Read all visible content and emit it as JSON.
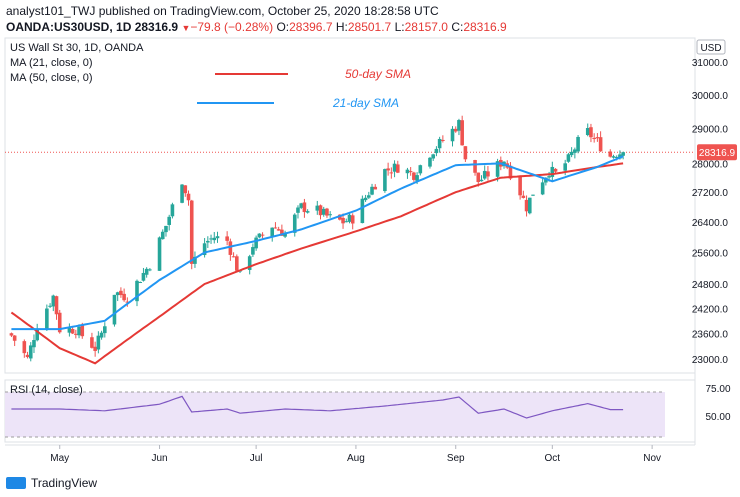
{
  "header": {
    "line1": "analyst101_TWJ published on TradingView.com, October 25, 2020 18:28:58 UTC",
    "symbol": "OANDA:US30USD, 1D",
    "last": "28316.9",
    "change": "−79.8 (−0.28%)",
    "o_label": "O:",
    "o_value": "28396.7",
    "h_label": "H:",
    "h_value": "28501.7",
    "l_label": "L:",
    "l_value": "28157.0",
    "c_label": "C:",
    "c_value": "28316.9"
  },
  "legend": {
    "title": "US Wall St 30, 1D, OANDA",
    "ma21": "MA (21, close, 0)",
    "ma50": "MA (50, close, 0)",
    "sma50_annot": "50-day SMA",
    "sma21_annot": "21-day SMA"
  },
  "price_axis": {
    "currency": "USD",
    "last_price_tag": "28316.9"
  },
  "rsi": {
    "label": "RSI (14, close)",
    "ticks": [
      "75.00",
      "50.00"
    ]
  },
  "footer": {
    "brand": "TradingView"
  },
  "colors": {
    "up": "#26a69a",
    "down": "#ef5350",
    "sma50": "#e53935",
    "sma21": "#2196f3",
    "rsi": "#7e57c2",
    "rsi_band": "#ece3f7"
  },
  "chart_data": {
    "type": "candlestick",
    "price_scale": "log",
    "ylim": [
      22700,
      31700
    ],
    "yticks": [
      23000,
      23600,
      24200,
      24800,
      25600,
      26400,
      27200,
      28000,
      29000,
      30000,
      31000
    ],
    "ytick_labels": [
      "23000.0",
      "23600.0",
      "24200.0",
      "24800.0",
      "25600.0",
      "26400.0",
      "27200.0",
      "28000.0",
      "29000.0",
      "30000.0",
      "31000.0"
    ],
    "month_labels": [
      "May",
      "Jun",
      "Jul",
      "Aug",
      "Sep",
      "Oct",
      "Nov"
    ],
    "last_price": 28316.9,
    "rsi_range": [
      0,
      100
    ],
    "rsi_levels": [
      70,
      30
    ],
    "ohlc_anchors_close": [
      [
        "2020-04-16",
        23550
      ],
      [
        "2020-04-21",
        23000
      ],
      [
        "2020-04-24",
        23800
      ],
      [
        "2020-04-29",
        24500
      ],
      [
        "2020-05-01",
        23700
      ],
      [
        "2020-05-06",
        23700
      ],
      [
        "2020-05-12",
        23250
      ],
      [
        "2020-05-14",
        23600
      ],
      [
        "2020-05-18",
        24600
      ],
      [
        "2020-05-22",
        24480
      ],
      [
        "2020-05-26",
        24950
      ],
      [
        "2020-05-29",
        25300
      ],
      [
        "2020-06-03",
        26300
      ],
      [
        "2020-06-08",
        27550
      ],
      [
        "2020-06-10",
        27000
      ],
      [
        "2020-06-11",
        25300
      ],
      [
        "2020-06-15",
        25850
      ],
      [
        "2020-06-18",
        26000
      ],
      [
        "2020-06-22",
        25900
      ],
      [
        "2020-06-26",
        25000
      ],
      [
        "2020-06-30",
        25800
      ],
      [
        "2020-07-06",
        26300
      ],
      [
        "2020-07-10",
        26100
      ],
      [
        "2020-07-15",
        26800
      ],
      [
        "2020-07-20",
        26700
      ],
      [
        "2020-07-24",
        26500
      ],
      [
        "2020-07-28",
        26400
      ],
      [
        "2020-07-31",
        26500
      ],
      [
        "2020-08-05",
        27200
      ],
      [
        "2020-08-10",
        27800
      ],
      [
        "2020-08-14",
        27900
      ],
      [
        "2020-08-19",
        27700
      ],
      [
        "2020-08-24",
        28300
      ],
      [
        "2020-08-28",
        28650
      ],
      [
        "2020-09-02",
        29150
      ],
      [
        "2020-09-04",
        28150
      ],
      [
        "2020-09-08",
        27500
      ],
      [
        "2020-09-11",
        27700
      ],
      [
        "2020-09-16",
        28100
      ],
      [
        "2020-09-21",
        27200
      ],
      [
        "2020-09-23",
        26800
      ],
      [
        "2020-09-25",
        27200
      ],
      [
        "2020-09-30",
        27800
      ],
      [
        "2020-10-02",
        27700
      ],
      [
        "2020-10-06",
        28100
      ],
      [
        "2020-10-09",
        28600
      ],
      [
        "2020-10-12",
        28900
      ],
      [
        "2020-10-15",
        28600
      ],
      [
        "2020-10-19",
        28200
      ],
      [
        "2020-10-21",
        28300
      ],
      [
        "2020-10-23",
        28316.9
      ]
    ],
    "sma21_anchors": [
      [
        "2020-04-16",
        23700
      ],
      [
        "2020-05-01",
        23700
      ],
      [
        "2020-05-15",
        23900
      ],
      [
        "2020-06-01",
        24900
      ],
      [
        "2020-06-15",
        25600
      ],
      [
        "2020-07-01",
        25900
      ],
      [
        "2020-07-15",
        26200
      ],
      [
        "2020-08-01",
        26700
      ],
      [
        "2020-08-15",
        27300
      ],
      [
        "2020-09-01",
        27950
      ],
      [
        "2020-09-15",
        28000
      ],
      [
        "2020-10-01",
        27500
      ],
      [
        "2020-10-15",
        27900
      ],
      [
        "2020-10-23",
        28200
      ]
    ],
    "sma50_anchors": [
      [
        "2020-04-16",
        24100
      ],
      [
        "2020-05-01",
        23250
      ],
      [
        "2020-05-12",
        22900
      ],
      [
        "2020-06-01",
        24000
      ],
      [
        "2020-06-15",
        24800
      ],
      [
        "2020-07-01",
        25300
      ],
      [
        "2020-07-15",
        25700
      ],
      [
        "2020-08-01",
        26150
      ],
      [
        "2020-08-15",
        26550
      ],
      [
        "2020-09-01",
        27200
      ],
      [
        "2020-09-15",
        27600
      ],
      [
        "2020-10-01",
        27700
      ],
      [
        "2020-10-15",
        27900
      ],
      [
        "2020-10-23",
        28000
      ]
    ],
    "rsi_anchors": [
      [
        "2020-04-16",
        55
      ],
      [
        "2020-05-01",
        55
      ],
      [
        "2020-05-15",
        52
      ],
      [
        "2020-06-01",
        63
      ],
      [
        "2020-06-08",
        76
      ],
      [
        "2020-06-11",
        50
      ],
      [
        "2020-06-22",
        55
      ],
      [
        "2020-06-26",
        48
      ],
      [
        "2020-07-10",
        55
      ],
      [
        "2020-07-24",
        52
      ],
      [
        "2020-08-10",
        60
      ],
      [
        "2020-08-28",
        70
      ],
      [
        "2020-09-02",
        75
      ],
      [
        "2020-09-08",
        48
      ],
      [
        "2020-09-16",
        55
      ],
      [
        "2020-09-23",
        40
      ],
      [
        "2020-10-01",
        52
      ],
      [
        "2020-10-12",
        64
      ],
      [
        "2020-10-19",
        54
      ],
      [
        "2020-10-23",
        54
      ]
    ]
  }
}
